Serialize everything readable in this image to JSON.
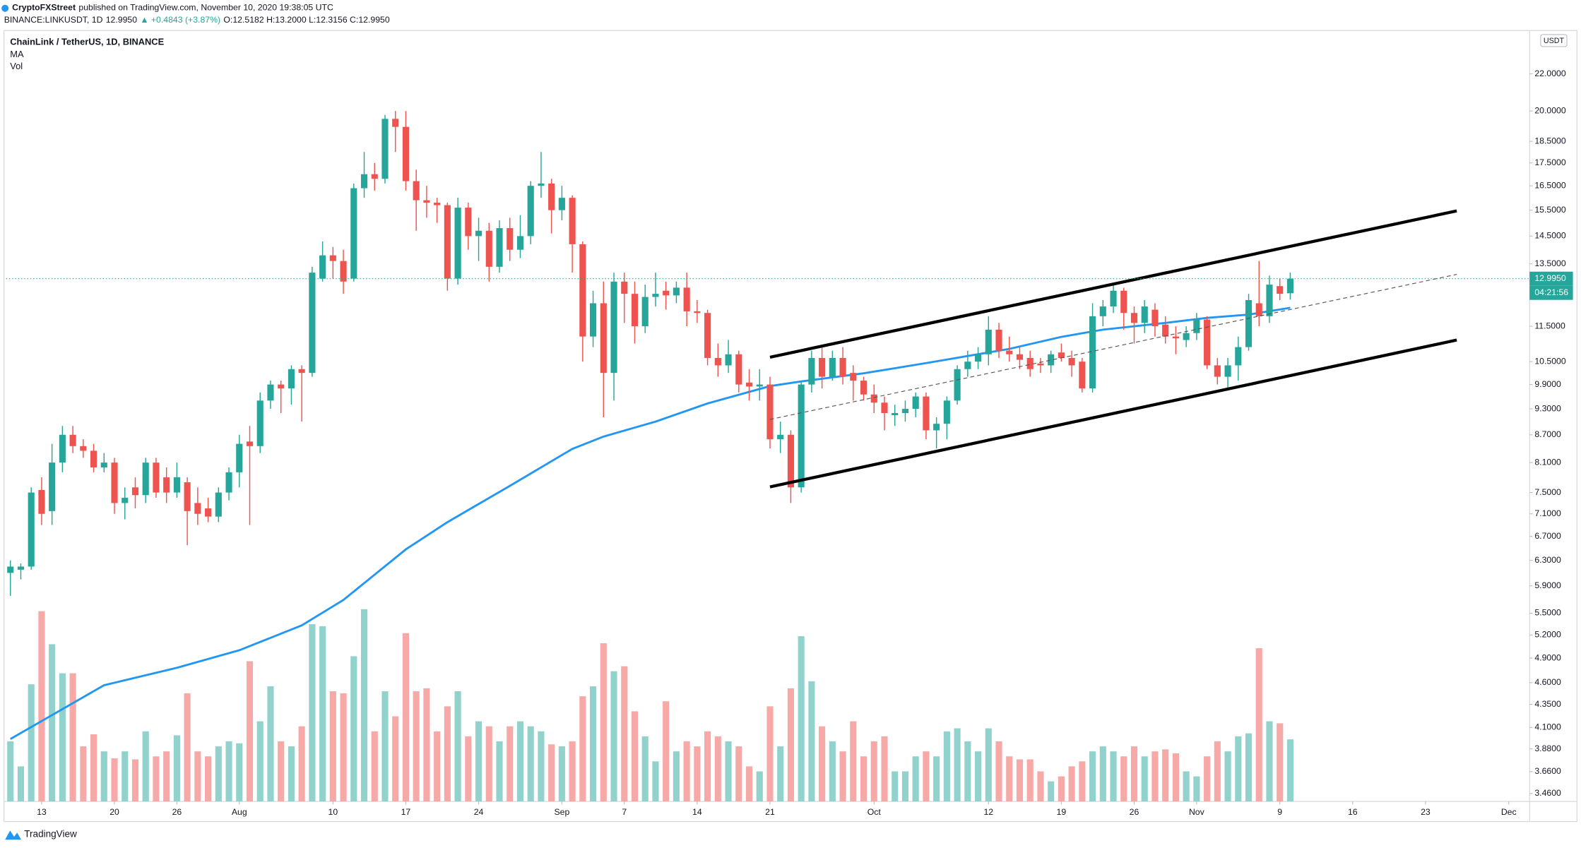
{
  "header": {
    "publisher": "CryptoFXStreet",
    "published": "published on TradingView.com, November 10, 2020 19:38:05 UTC",
    "symbol": "BINANCE:LINKUSDT, 1D",
    "last": "12.9950",
    "change": "▲ +0.4843 (+3.87%)",
    "ohlc": "O:12.5182 H:13.2000 L:12.3156 C:12.9950"
  },
  "footer": {
    "brand": "TradingView"
  },
  "chart_data": {
    "type": "candlestick",
    "title": "ChainLink / TetherUS, 1D, BINANCE",
    "x": [
      "2020-07-10",
      "2020-07-11",
      "2020-07-12",
      "2020-07-13",
      "2020-07-14",
      "2020-07-15",
      "2020-07-16",
      "2020-07-17",
      "2020-07-18",
      "2020-07-19",
      "2020-07-20",
      "2020-07-21",
      "2020-07-22",
      "2020-07-23",
      "2020-07-24",
      "2020-07-25",
      "2020-07-26",
      "2020-07-27",
      "2020-07-28",
      "2020-07-29",
      "2020-07-30",
      "2020-07-31",
      "2020-08-01",
      "2020-08-02",
      "2020-08-03",
      "2020-08-04",
      "2020-08-05",
      "2020-08-06",
      "2020-08-07",
      "2020-08-08",
      "2020-08-09",
      "2020-08-10",
      "2020-08-11",
      "2020-08-12",
      "2020-08-13",
      "2020-08-14",
      "2020-08-15",
      "2020-08-16",
      "2020-08-17",
      "2020-08-18",
      "2020-08-19",
      "2020-08-20",
      "2020-08-21",
      "2020-08-22",
      "2020-08-23",
      "2020-08-24",
      "2020-08-25",
      "2020-08-26",
      "2020-08-27",
      "2020-08-28",
      "2020-08-29",
      "2020-08-30",
      "2020-08-31",
      "2020-09-01",
      "2020-09-02",
      "2020-09-03",
      "2020-09-04",
      "2020-09-05",
      "2020-09-06",
      "2020-09-07",
      "2020-09-08",
      "2020-09-09",
      "2020-09-10",
      "2020-09-11",
      "2020-09-12",
      "2020-09-13",
      "2020-09-14",
      "2020-09-15",
      "2020-09-16",
      "2020-09-17",
      "2020-09-18",
      "2020-09-19",
      "2020-09-20",
      "2020-09-21",
      "2020-09-22",
      "2020-09-23",
      "2020-09-24",
      "2020-09-25",
      "2020-09-26",
      "2020-09-27",
      "2020-09-28",
      "2020-09-29",
      "2020-09-30",
      "2020-10-01",
      "2020-10-02",
      "2020-10-03",
      "2020-10-04",
      "2020-10-05",
      "2020-10-06",
      "2020-10-07",
      "2020-10-08",
      "2020-10-09",
      "2020-10-10",
      "2020-10-11",
      "2020-10-12",
      "2020-10-13",
      "2020-10-14",
      "2020-10-15",
      "2020-10-16",
      "2020-10-17",
      "2020-10-18",
      "2020-10-19",
      "2020-10-20",
      "2020-10-21",
      "2020-10-22",
      "2020-10-23",
      "2020-10-24",
      "2020-10-25",
      "2020-10-26",
      "2020-10-27",
      "2020-10-28",
      "2020-10-29",
      "2020-10-30",
      "2020-10-31",
      "2020-11-01",
      "2020-11-02",
      "2020-11-03",
      "2020-11-04",
      "2020-11-05",
      "2020-11-06",
      "2020-11-07",
      "2020-11-08",
      "2020-11-09",
      "2020-11-10"
    ],
    "open": [
      6.1,
      6.15,
      6.2,
      7.55,
      7.15,
      8.1,
      8.7,
      8.45,
      8.35,
      8.0,
      8.1,
      7.3,
      7.6,
      7.45,
      8.1,
      7.8,
      7.5,
      7.7,
      7.3,
      7.2,
      7.05,
      7.5,
      7.9,
      8.55,
      8.45,
      9.5,
      9.9,
      9.8,
      10.3,
      10.2,
      13.0,
      13.8,
      13.6,
      13.0,
      16.4,
      17.0,
      16.8,
      19.6,
      19.2,
      16.7,
      15.9,
      15.8,
      15.7,
      13.0,
      15.6,
      14.5,
      14.7,
      13.4,
      14.8,
      14.0,
      14.5,
      16.5,
      16.6,
      15.5,
      16.0,
      14.2,
      11.2,
      12.2,
      10.2,
      12.9,
      12.5,
      11.5,
      12.4,
      12.6,
      12.45,
      12.7,
      11.95,
      11.9,
      10.6,
      10.4,
      10.7,
      9.95,
      9.85,
      9.9,
      8.6,
      8.7,
      7.6,
      9.9,
      10.6,
      10.1,
      10.6,
      10.2,
      10.0,
      9.65,
      9.45,
      9.15,
      9.2,
      9.3,
      9.6,
      8.8,
      8.95,
      9.5,
      10.3,
      10.5,
      10.7,
      11.4,
      10.8,
      10.7,
      10.6,
      10.45,
      10.4,
      10.75,
      10.6,
      10.5,
      9.8,
      11.8,
      12.1,
      12.6,
      11.9,
      11.6,
      12.0,
      11.55,
      11.2,
      11.1,
      11.3,
      11.7,
      10.4,
      10.1,
      10.4,
      10.9,
      12.2,
      11.8,
      12.75,
      12.5182
    ],
    "high": [
      6.3,
      6.25,
      7.6,
      7.8,
      8.5,
      8.9,
      8.9,
      8.6,
      8.5,
      8.3,
      8.2,
      7.6,
      7.8,
      8.2,
      8.2,
      8.0,
      8.1,
      7.8,
      7.6,
      7.4,
      7.6,
      8.0,
      8.7,
      8.9,
      9.7,
      10.0,
      10.0,
      10.4,
      10.4,
      13.4,
      14.3,
      14.1,
      14.0,
      16.6,
      18.0,
      17.5,
      19.8,
      20.0,
      20.0,
      17.2,
      16.5,
      16.0,
      15.8,
      16.0,
      15.8,
      15.2,
      15.0,
      15.1,
      15.2,
      15.3,
      16.7,
      18.0,
      16.8,
      16.5,
      16.1,
      14.3,
      12.6,
      12.9,
      13.2,
      13.2,
      12.9,
      12.8,
      13.2,
      12.9,
      12.9,
      13.2,
      12.3,
      12.0,
      11.0,
      11.1,
      10.8,
      10.3,
      10.3,
      10.1,
      9.0,
      8.8,
      10.0,
      10.8,
      10.9,
      10.8,
      10.9,
      10.4,
      10.1,
      9.9,
      9.6,
      9.4,
      9.5,
      9.7,
      9.7,
      9.1,
      9.6,
      10.4,
      10.8,
      10.9,
      11.8,
      11.6,
      11.2,
      10.9,
      10.8,
      10.6,
      10.8,
      11.0,
      10.8,
      10.6,
      12.2,
      12.3,
      12.8,
      12.7,
      12.1,
      12.3,
      12.2,
      11.8,
      11.5,
      11.5,
      11.9,
      11.8,
      10.6,
      10.6,
      11.2,
      12.5,
      13.6,
      13.1,
      13.0,
      13.2
    ],
    "low": [
      5.75,
      6.0,
      6.15,
      6.9,
      6.9,
      7.9,
      8.3,
      8.2,
      7.9,
      7.9,
      7.1,
      7.0,
      7.2,
      7.3,
      7.4,
      7.3,
      7.4,
      6.55,
      6.9,
      6.95,
      6.95,
      7.35,
      7.6,
      6.9,
      8.3,
      9.3,
      9.2,
      9.4,
      9.0,
      10.1,
      12.9,
      13.0,
      12.5,
      12.9,
      16.0,
      16.3,
      16.6,
      18.0,
      16.3,
      14.7,
      15.2,
      15.0,
      12.6,
      12.8,
      14.0,
      13.6,
      12.9,
      13.2,
      13.6,
      13.7,
      14.2,
      16.0,
      14.6,
      15.1,
      13.2,
      10.5,
      10.9,
      9.1,
      9.5,
      11.6,
      11.0,
      11.3,
      12.1,
      12.0,
      12.2,
      11.5,
      11.6,
      10.4,
      10.1,
      10.2,
      9.7,
      9.5,
      9.5,
      8.4,
      8.3,
      7.3,
      7.5,
      9.7,
      9.8,
      10.0,
      9.9,
      9.5,
      9.5,
      9.2,
      8.8,
      8.9,
      9.0,
      9.1,
      8.6,
      8.4,
      8.6,
      9.4,
      10.1,
      10.3,
      10.4,
      10.6,
      10.5,
      10.3,
      10.1,
      10.2,
      10.2,
      10.5,
      10.1,
      9.7,
      9.7,
      11.5,
      11.9,
      11.4,
      11.0,
      11.3,
      11.2,
      11.0,
      10.7,
      10.9,
      11.1,
      10.3,
      9.9,
      9.8,
      10.0,
      10.8,
      11.5,
      11.6,
      12.3,
      12.3156
    ],
    "close": [
      6.2,
      6.2,
      7.5,
      7.1,
      8.1,
      8.7,
      8.45,
      8.35,
      8.0,
      8.1,
      7.3,
      7.4,
      7.45,
      8.1,
      7.5,
      7.5,
      7.8,
      7.15,
      7.1,
      7.05,
      7.5,
      7.9,
      8.5,
      8.45,
      9.5,
      9.9,
      9.8,
      10.3,
      10.2,
      13.2,
      13.8,
      13.6,
      12.9,
      16.4,
      17.0,
      16.8,
      19.6,
      19.2,
      16.7,
      15.9,
      15.8,
      15.7,
      13.0,
      15.6,
      14.5,
      14.7,
      13.4,
      14.8,
      14.0,
      14.5,
      16.5,
      16.6,
      15.5,
      16.0,
      14.2,
      11.2,
      12.2,
      10.2,
      12.9,
      12.5,
      11.5,
      12.4,
      12.5,
      12.45,
      12.7,
      11.95,
      11.9,
      10.6,
      10.4,
      10.7,
      9.9,
      9.85,
      9.9,
      8.6,
      8.7,
      7.6,
      9.9,
      10.6,
      10.1,
      10.6,
      10.1,
      10.0,
      9.65,
      9.45,
      9.2,
      9.2,
      9.3,
      9.6,
      8.8,
      8.95,
      9.5,
      10.3,
      10.5,
      10.7,
      11.4,
      10.8,
      10.7,
      10.55,
      10.3,
      10.4,
      10.7,
      10.6,
      10.4,
      9.8,
      11.8,
      12.1,
      12.6,
      11.9,
      11.6,
      12.1,
      11.5,
      11.2,
      11.15,
      11.3,
      11.7,
      10.4,
      10.1,
      10.4,
      10.9,
      12.3,
      11.8,
      12.8,
      12.5,
      12.995
    ],
    "up_color": "#26a69a",
    "down_color": "#ef5350",
    "volume": {
      "name": "Vol",
      "up_color": "#92d2cc",
      "down_color": "#f7a9a7",
      "ylim": [
        0,
        770
      ],
      "values": [
        60,
        35,
        117,
        190,
        157,
        128,
        128,
        55,
        67,
        50,
        43,
        50,
        42,
        70,
        45,
        50,
        66,
        108,
        50,
        45,
        55,
        60,
        58,
        140,
        80,
        115,
        60,
        55,
        75,
        177,
        175,
        110,
        108,
        145,
        192,
        70,
        110,
        85,
        168,
        110,
        113,
        70,
        95,
        110,
        65,
        80,
        75,
        60,
        75,
        80,
        75,
        70,
        57,
        55,
        60,
        105,
        115,
        158,
        130,
        135,
        90,
        65,
        40,
        100,
        50,
        60,
        55,
        70,
        65,
        60,
        55,
        35,
        30,
        95,
        55,
        113,
        165,
        120,
        75,
        60,
        50,
        80,
        45,
        60,
        65,
        30,
        30,
        45,
        50,
        45,
        70,
        73,
        60,
        50,
        73,
        60,
        45,
        42,
        42,
        30,
        20,
        25,
        35,
        40,
        50,
        55,
        50,
        45,
        55,
        45,
        50,
        52,
        48,
        30,
        25,
        45,
        60,
        50,
        65,
        68,
        153,
        80,
        78,
        62
      ]
    },
    "ma": {
      "name": "MA",
      "color": "#2196f3",
      "x": [
        "2020-07-10",
        "2020-07-19",
        "2020-07-26",
        "2020-08-01",
        "2020-08-07",
        "2020-08-11",
        "2020-08-17",
        "2020-08-21",
        "2020-08-27",
        "2020-09-02",
        "2020-09-05",
        "2020-09-10",
        "2020-09-15",
        "2020-09-21",
        "2020-09-24",
        "2020-09-30",
        "2020-10-06",
        "2020-10-14",
        "2020-10-19",
        "2020-10-23",
        "2020-10-29",
        "2020-11-02",
        "2020-11-06",
        "2020-11-10"
      ],
      "values": [
        3.98,
        4.57,
        4.78,
        5.0,
        5.33,
        5.69,
        6.48,
        6.95,
        7.63,
        8.39,
        8.66,
        9.0,
        9.43,
        9.86,
        9.98,
        10.19,
        10.46,
        10.85,
        11.19,
        11.4,
        11.6,
        11.75,
        11.85,
        12.06
      ]
    },
    "channels": [
      {
        "x": [
          "2020-09-21",
          "2020-11-26"
        ],
        "values": [
          10.62,
          15.47
        ],
        "color": "#000000",
        "dashed": false
      },
      {
        "x": [
          "2020-09-21",
          "2020-11-26"
        ],
        "values": [
          7.61,
          11.1
        ],
        "color": "#000000",
        "dashed": false
      },
      {
        "x": [
          "2020-09-21",
          "2020-11-26"
        ],
        "values": [
          9.05,
          13.14
        ],
        "color": "#555555",
        "dashed": true
      }
    ],
    "log": true,
    "grid": false,
    "ylim": [
      3.39,
      24.6
    ],
    "yticks": [
      {
        "value": 22,
        "label": "22.0000"
      },
      {
        "value": 20,
        "label": "20.0000"
      },
      {
        "value": 18.5,
        "label": "18.5000"
      },
      {
        "value": 17.5,
        "label": "17.5000"
      },
      {
        "value": 16.5,
        "label": "16.5000"
      },
      {
        "value": 15.5,
        "label": "15.5000"
      },
      {
        "value": 14.5,
        "label": "14.5000"
      },
      {
        "value": 13.5,
        "label": "13.5000"
      },
      {
        "value": 11.5,
        "label": "11.5000"
      },
      {
        "value": 10.5,
        "label": "10.5000"
      },
      {
        "value": 9.9,
        "label": "9.9000"
      },
      {
        "value": 9.3,
        "label": "9.3000"
      },
      {
        "value": 8.7,
        "label": "8.7000"
      },
      {
        "value": 8.1,
        "label": "8.1000"
      },
      {
        "value": 7.5,
        "label": "7.5000"
      },
      {
        "value": 7.1,
        "label": "7.1000"
      },
      {
        "value": 6.7,
        "label": "6.7000"
      },
      {
        "value": 6.3,
        "label": "6.3000"
      },
      {
        "value": 5.9,
        "label": "5.9000"
      },
      {
        "value": 5.5,
        "label": "5.5000"
      },
      {
        "value": 5.2,
        "label": "5.2000"
      },
      {
        "value": 4.9,
        "label": "4.9000"
      },
      {
        "value": 4.6,
        "label": "4.6000"
      },
      {
        "value": 4.35,
        "label": "4.3500"
      },
      {
        "value": 4.1,
        "label": "4.1000"
      },
      {
        "value": 3.88,
        "label": "3.8800"
      },
      {
        "value": 3.66,
        "label": "3.6600"
      },
      {
        "value": 3.46,
        "label": "3.4600"
      }
    ],
    "xlim": [
      "2020-07-09",
      "2020-12-03"
    ],
    "xticks": [
      {
        "value": "2020-07-13",
        "label": "13"
      },
      {
        "value": "2020-07-20",
        "label": "20"
      },
      {
        "value": "2020-07-26",
        "label": "26"
      },
      {
        "value": "2020-08-01",
        "label": "Aug"
      },
      {
        "value": "2020-08-10",
        "label": "10"
      },
      {
        "value": "2020-08-17",
        "label": "17"
      },
      {
        "value": "2020-08-24",
        "label": "24"
      },
      {
        "value": "2020-09-01",
        "label": "Sep"
      },
      {
        "value": "2020-09-07",
        "label": "7"
      },
      {
        "value": "2020-09-14",
        "label": "14"
      },
      {
        "value": "2020-09-21",
        "label": "21"
      },
      {
        "value": "2020-10-01",
        "label": "Oct"
      },
      {
        "value": "2020-10-12",
        "label": "12"
      },
      {
        "value": "2020-10-19",
        "label": "19"
      },
      {
        "value": "2020-10-26",
        "label": "26"
      },
      {
        "value": "2020-11-01",
        "label": "Nov"
      },
      {
        "value": "2020-11-09",
        "label": "9"
      },
      {
        "value": "2020-11-16",
        "label": "16"
      },
      {
        "value": "2020-11-23",
        "label": "23"
      },
      {
        "value": "2020-12-01",
        "label": "Dec"
      }
    ],
    "currency": "USDT",
    "last_price": {
      "value": 12.995,
      "label": "12.9950"
    },
    "countdown": "04:21:56"
  }
}
